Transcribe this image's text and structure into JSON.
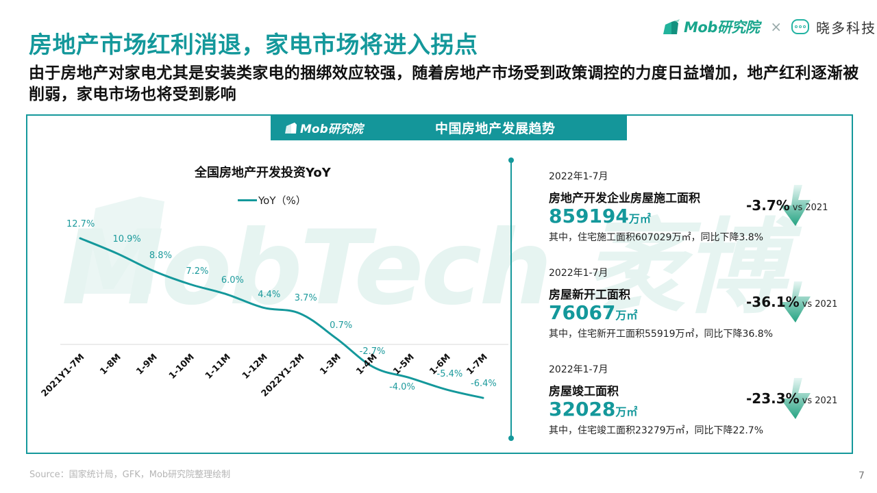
{
  "header": {
    "title": "房地产市场红利消退，家电市场将进入拐点",
    "subtitle": "由于房地产对家电尤其是安装类家电的捆绑效应较强，随着房地产市场受到政策调控的力度日益增加，地产红利逐渐被削弱，家电市场也将受到影响"
  },
  "brand": {
    "mob_logo_text": "Mob研究院",
    "separator": "×",
    "partner_name": "晓多科技",
    "mob_logo_icon": "building-icon",
    "partner_icon": "chat-bubble-icon"
  },
  "panel": {
    "header_logo_text": "Mob研究院",
    "header_title": "中国房地产发展趋势",
    "watermark_text": "MobTech 袤博"
  },
  "chart_data": {
    "type": "line",
    "title": "全国房地产开发投资YoY",
    "xlabel": "",
    "ylabel": "",
    "legend": [
      {
        "name": "YoY（%）",
        "color": "#14989b"
      }
    ],
    "legend_position": "top",
    "grid": false,
    "categories": [
      "2021Y1-7M",
      "1-8M",
      "1-9M",
      "1-10M",
      "1-11M",
      "1-12M",
      "2022Y1-2M",
      "1-3M",
      "1-4M",
      "1-5M",
      "1-6M",
      "1-7M"
    ],
    "series": [
      {
        "name": "YoY（%）",
        "values": [
          12.7,
          10.9,
          8.8,
          7.2,
          6.0,
          4.4,
          3.7,
          0.7,
          -2.7,
          -4.0,
          -5.4,
          -6.4
        ]
      }
    ],
    "data_labels": [
      "12.7%",
      "10.9%",
      "8.8%",
      "7.2%",
      "6.0%",
      "4.4%",
      "3.7%",
      "0.7%",
      "-2.7%",
      "-4.0%",
      "-5.4%",
      "-6.4%"
    ],
    "ylim": [
      -7,
      13
    ]
  },
  "stats": [
    {
      "period": "2022年1-7月",
      "metric": "房地产开发企业房屋施工面积",
      "value": "859194",
      "unit": "万㎡",
      "note": "其中，住宅施工面积607029万㎡，同比下降3.8%",
      "change": "-3.7%",
      "vs": "vs 2021"
    },
    {
      "period": "2022年1-7月",
      "metric": "房屋新开工面积",
      "value": "76067",
      "unit": "万㎡",
      "note": "其中，住宅新开工面积55919万㎡，同比下降36.8%",
      "change": "-36.1%",
      "vs": "vs 2021"
    },
    {
      "period": "2022年1-7月",
      "metric": "房屋竣工面积",
      "value": "32028",
      "unit": "万㎡",
      "note": "其中，住宅竣工面积23279万㎡，同比下降22.7%",
      "change": "-23.3%",
      "vs": "vs 2021"
    }
  ],
  "footer": {
    "source": "Source：国家统计局，GFK，Mob研究院整理绘制",
    "page_number": "7"
  },
  "colors": {
    "accent": "#14989b",
    "brand_green": "#1aa68d",
    "arrow_green": "#2aa584",
    "source_gray": "#b5b5b5"
  }
}
